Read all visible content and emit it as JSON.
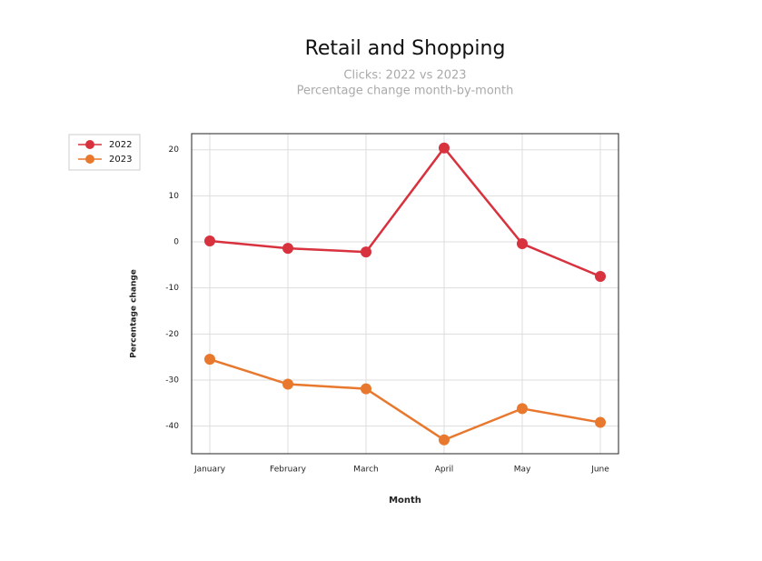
{
  "chart_data": {
    "type": "line",
    "title": "Retail and Shopping",
    "subtitle": [
      "Clicks: 2022 vs 2023",
      "Percentage change month-by-month"
    ],
    "x_label": "Month",
    "y_label": "Percentage change",
    "categories": [
      "January",
      "February",
      "March",
      "April",
      "May",
      "June"
    ],
    "series": [
      {
        "name": "2022",
        "color": "#d8323f",
        "values": [
          0.2,
          -1.4,
          -2.2,
          20.4,
          -0.4,
          -7.5
        ]
      },
      {
        "name": "2023",
        "color": "#e8782e",
        "values": [
          -25.5,
          -30.9,
          -31.9,
          -43.0,
          -36.2,
          -39.2
        ]
      }
    ],
    "ylim": [
      -46,
      23.5
    ],
    "yticks": [
      -40,
      -30,
      -20,
      -10,
      0,
      10,
      20
    ],
    "grid": true,
    "legend": "left"
  }
}
